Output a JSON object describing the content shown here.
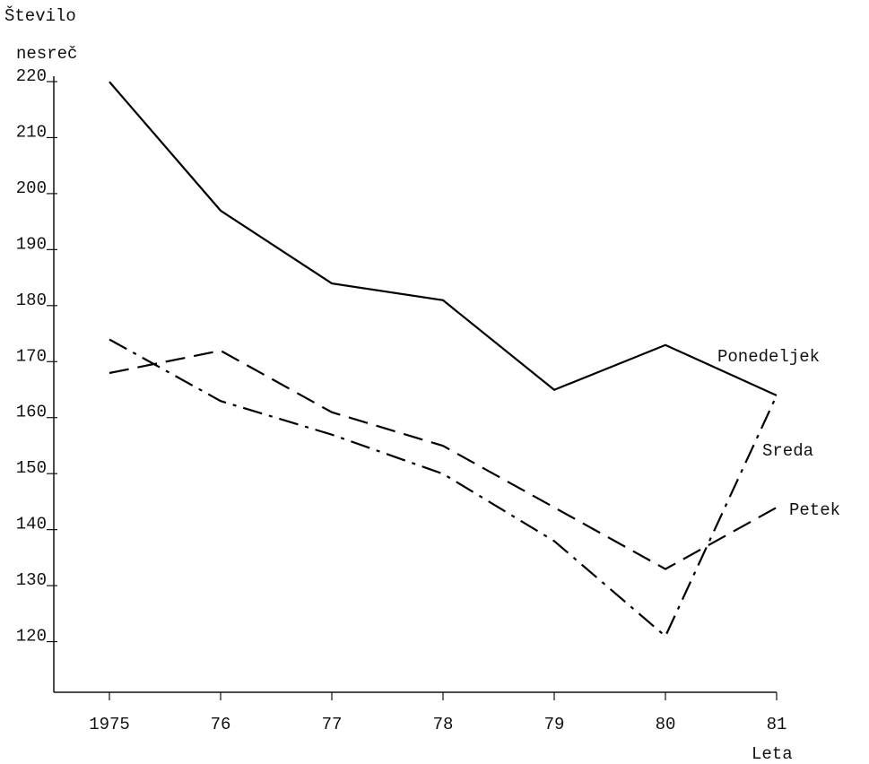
{
  "chart_data": {
    "type": "line",
    "y_label_lines": [
      "Število",
      "nesreč"
    ],
    "x_label": "Leta",
    "x": [
      1975,
      1976,
      1977,
      1978,
      1979,
      1980,
      1981
    ],
    "series": [
      {
        "name": "Ponedeljek",
        "color": "#000000",
        "dash": "solid",
        "values": [
          219,
          196,
          183,
          180,
          164,
          172,
          163
        ]
      },
      {
        "name": "Sreda",
        "color": "#000000",
        "dash": "dashdot",
        "values": [
          173,
          162,
          156,
          149,
          137,
          120,
          163
        ]
      },
      {
        "name": "Petek",
        "color": "#000000",
        "dash": "dashed",
        "values": [
          167,
          171,
          160,
          154,
          143,
          132,
          143
        ]
      }
    ],
    "xlim": [
      1974.5,
      1981
    ],
    "xticks": [
      {
        "value": 1975,
        "label": "1975"
      },
      {
        "value": 1976,
        "label": "76"
      },
      {
        "value": 1977,
        "label": "77"
      },
      {
        "value": 1978,
        "label": "78"
      },
      {
        "value": 1979,
        "label": "79"
      },
      {
        "value": 1980,
        "label": "80"
      },
      {
        "value": 1981,
        "label": "81"
      }
    ],
    "ylim": [
      110,
      220
    ],
    "yticks": [
      120,
      130,
      140,
      150,
      160,
      170,
      180,
      190,
      200,
      210,
      220
    ],
    "grid": false
  }
}
